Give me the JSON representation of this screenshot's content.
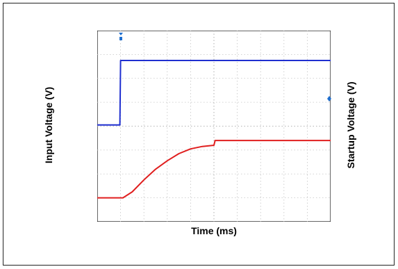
{
  "chart_data": {
    "type": "line",
    "title": "",
    "xlabel": "Time (ms)",
    "ylabel_left": "Input Voltage (V)",
    "ylabel_right": "Startup Voltage (V)",
    "grid": true,
    "grid_divisions": {
      "x": 10,
      "y": 8
    },
    "tick_labels": false,
    "series": [
      {
        "color": "#1f2fd0",
        "x": [
          0,
          0.55,
          0.97,
          1.0,
          10
        ],
        "y": [
          4.05,
          4.05,
          4.05,
          6.75,
          6.75
        ]
      },
      {
        "color": "#e01e1e",
        "x": [
          0,
          1.1,
          1.5,
          2.0,
          2.5,
          3.0,
          3.5,
          4.0,
          4.5,
          5.0,
          5.05,
          6.0,
          7.0,
          8.0,
          9.0,
          10
        ],
        "y": [
          1.0,
          1.0,
          1.25,
          1.75,
          2.2,
          2.55,
          2.85,
          3.05,
          3.15,
          3.2,
          3.4,
          3.4,
          3.4,
          3.4,
          3.4,
          3.4
        ]
      }
    ],
    "marker_color": "#1f6fd0",
    "xlim": [
      0,
      10
    ],
    "ylim": [
      0,
      8
    ]
  }
}
